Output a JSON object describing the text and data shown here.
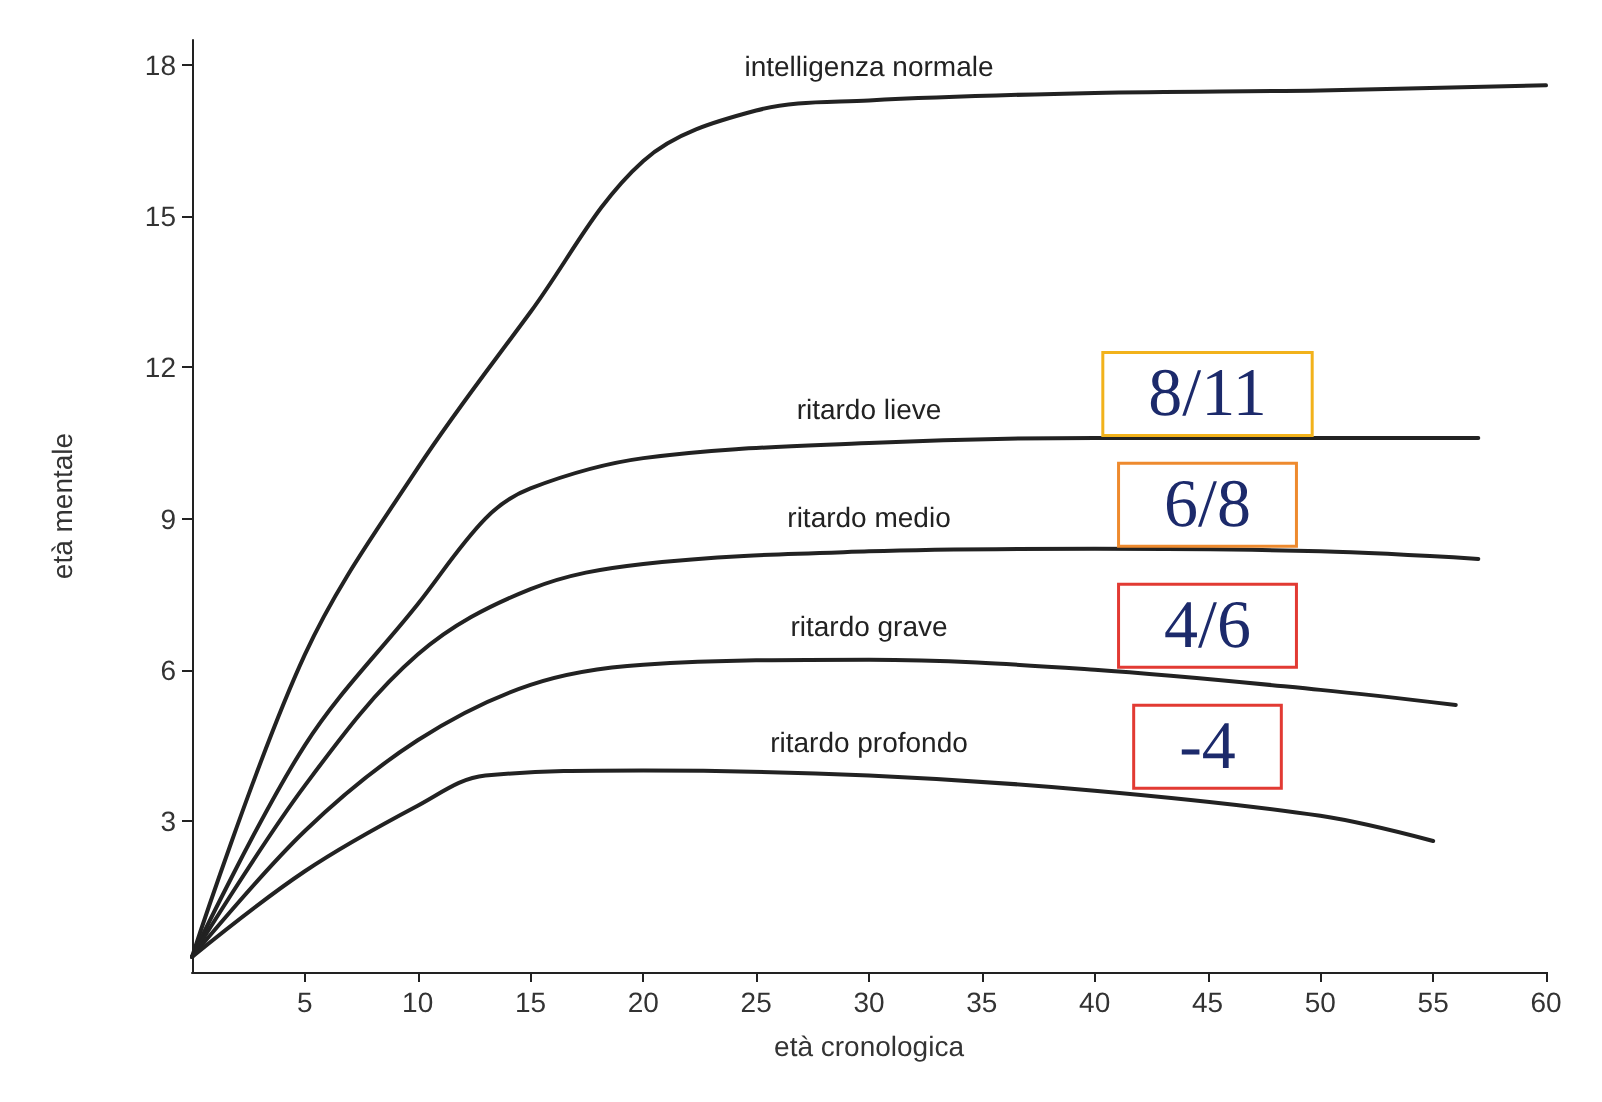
{
  "chart_data": {
    "type": "line",
    "xlabel": "età cronologica",
    "ylabel": "età mentale",
    "xlim": [
      0,
      60
    ],
    "ylim": [
      0,
      18.5
    ],
    "xticks": [
      5,
      10,
      15,
      20,
      25,
      30,
      35,
      40,
      45,
      50,
      55,
      60
    ],
    "yticks": [
      3,
      6,
      9,
      12,
      15,
      18
    ],
    "grid": false,
    "marker": "none",
    "line_style": "solid",
    "series": [
      {
        "name": "intelligenza normale",
        "color": "#222222",
        "x": [
          0,
          5,
          10,
          15,
          20,
          25,
          30,
          40,
          50,
          60
        ],
        "values": [
          0.3,
          6.3,
          10,
          13.1,
          16.1,
          17.1,
          17.3,
          17.45,
          17.5,
          17.6
        ]
      },
      {
        "name": "ritardo lieve",
        "color": "#222222",
        "x": [
          0,
          5,
          10,
          13,
          15,
          20,
          30,
          40,
          50,
          57
        ],
        "values": [
          0.3,
          4.5,
          7.3,
          9,
          9.6,
          10.2,
          10.5,
          10.6,
          10.6,
          10.6
        ]
      },
      {
        "name": "ritardo medio",
        "color": "#222222",
        "x": [
          0,
          5,
          10,
          15,
          20,
          30,
          40,
          50,
          57
        ],
        "values": [
          0.3,
          3.7,
          6.3,
          7.6,
          8.1,
          8.35,
          8.4,
          8.35,
          8.2
        ]
      },
      {
        "name": "ritardo grave",
        "color": "#222222",
        "x": [
          0,
          5,
          10,
          15,
          20,
          30,
          40,
          50,
          56
        ],
        "values": [
          0.3,
          2.8,
          4.6,
          5.7,
          6.1,
          6.2,
          6,
          5.6,
          5.3
        ]
      },
      {
        "name": "ritardo profondo",
        "color": "#222222",
        "x": [
          0,
          5,
          10,
          13,
          20,
          30,
          40,
          50,
          55
        ],
        "values": [
          0.3,
          2,
          3.3,
          3.9,
          4,
          3.9,
          3.6,
          3.1,
          2.6
        ]
      }
    ],
    "annotations": [
      "8/11",
      "6/8",
      "4/6",
      "-4"
    ]
  }
}
